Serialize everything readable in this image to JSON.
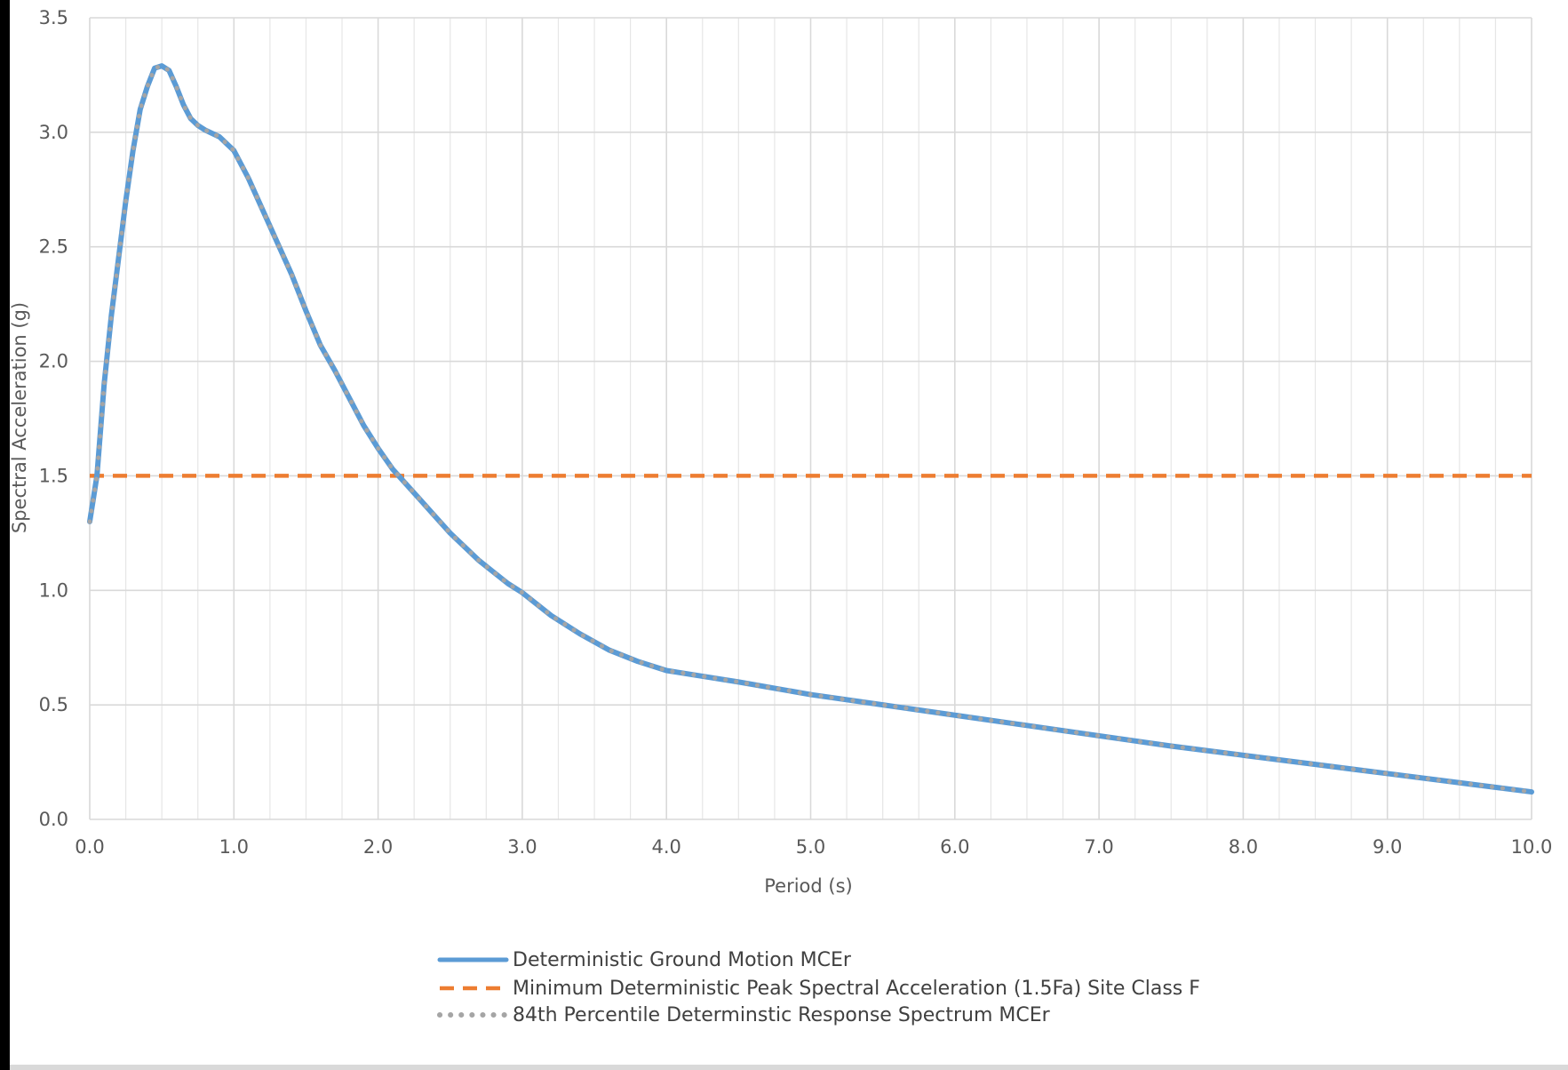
{
  "chart_data": {
    "type": "line",
    "title": "",
    "xlabel": "Period (s)",
    "ylabel": "Spectral Acceleration (g)",
    "xlim": [
      0,
      10
    ],
    "ylim": [
      0,
      3.5
    ],
    "x_ticks": [
      "0.0",
      "1.0",
      "2.0",
      "3.0",
      "4.0",
      "5.0",
      "6.0",
      "7.0",
      "8.0",
      "9.0",
      "10.0"
    ],
    "y_ticks": [
      "0.0",
      "0.5",
      "1.0",
      "1.5",
      "2.0",
      "2.5",
      "3.0",
      "3.5"
    ],
    "grid": true,
    "legend_position": "bottom",
    "series": [
      {
        "name": "Deterministic Ground Motion MCEr",
        "color": "#5b9bd5",
        "style": "solid",
        "points": [
          [
            0.0,
            1.3
          ],
          [
            0.05,
            1.5
          ],
          [
            0.1,
            1.9
          ],
          [
            0.15,
            2.2
          ],
          [
            0.2,
            2.45
          ],
          [
            0.25,
            2.7
          ],
          [
            0.3,
            2.92
          ],
          [
            0.35,
            3.1
          ],
          [
            0.4,
            3.2
          ],
          [
            0.45,
            3.28
          ],
          [
            0.5,
            3.29
          ],
          [
            0.55,
            3.27
          ],
          [
            0.6,
            3.2
          ],
          [
            0.65,
            3.12
          ],
          [
            0.7,
            3.06
          ],
          [
            0.75,
            3.03
          ],
          [
            0.8,
            3.01
          ],
          [
            0.9,
            2.98
          ],
          [
            1.0,
            2.92
          ],
          [
            1.1,
            2.8
          ],
          [
            1.2,
            2.66
          ],
          [
            1.3,
            2.52
          ],
          [
            1.4,
            2.38
          ],
          [
            1.5,
            2.22
          ],
          [
            1.6,
            2.07
          ],
          [
            1.7,
            1.96
          ],
          [
            1.8,
            1.84
          ],
          [
            1.9,
            1.72
          ],
          [
            2.0,
            1.62
          ],
          [
            2.1,
            1.53
          ],
          [
            2.2,
            1.46
          ],
          [
            2.3,
            1.39
          ],
          [
            2.4,
            1.32
          ],
          [
            2.5,
            1.25
          ],
          [
            2.6,
            1.19
          ],
          [
            2.7,
            1.13
          ],
          [
            2.8,
            1.08
          ],
          [
            2.9,
            1.03
          ],
          [
            3.0,
            0.99
          ],
          [
            3.2,
            0.89
          ],
          [
            3.4,
            0.81
          ],
          [
            3.6,
            0.74
          ],
          [
            3.8,
            0.69
          ],
          [
            4.0,
            0.65
          ],
          [
            4.25,
            0.625
          ],
          [
            4.5,
            0.6
          ],
          [
            5.0,
            0.545
          ],
          [
            5.5,
            0.5
          ],
          [
            6.0,
            0.455
          ],
          [
            6.5,
            0.41
          ],
          [
            7.0,
            0.365
          ],
          [
            7.5,
            0.32
          ],
          [
            8.0,
            0.28
          ],
          [
            8.5,
            0.24
          ],
          [
            9.0,
            0.2
          ],
          [
            9.5,
            0.16
          ],
          [
            10.0,
            0.12
          ]
        ]
      },
      {
        "name": "Minimum Deterministic Peak Spectral Acceleration (1.5Fa) Site Class F",
        "color": "#ed7d31",
        "style": "dashed",
        "points": [
          [
            0.0,
            1.5
          ],
          [
            10.0,
            1.5
          ]
        ]
      },
      {
        "name": "84th Percentile Determinstic Response Spectrum MCEr",
        "color": "#a5a5a5",
        "style": "dotted",
        "same_as_series": 0
      }
    ]
  }
}
